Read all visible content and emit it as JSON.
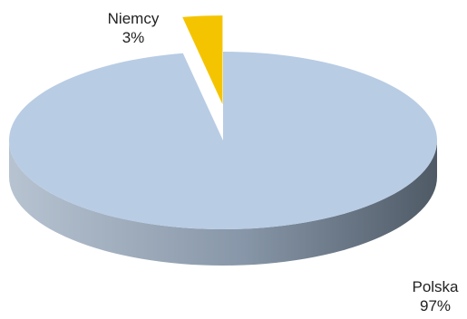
{
  "chart_data": {
    "type": "pie",
    "style": "3d-exploded",
    "slices": [
      {
        "label": "Polska",
        "value": 97,
        "value_label": "97%",
        "color": "#b8cce4",
        "side_color": "#6f7d8e"
      },
      {
        "label": "Niemcy",
        "value": 3,
        "value_label": "3%",
        "color": "#f5c400",
        "side_color": "#8a6d00"
      }
    ],
    "legend": false,
    "grid": false
  }
}
